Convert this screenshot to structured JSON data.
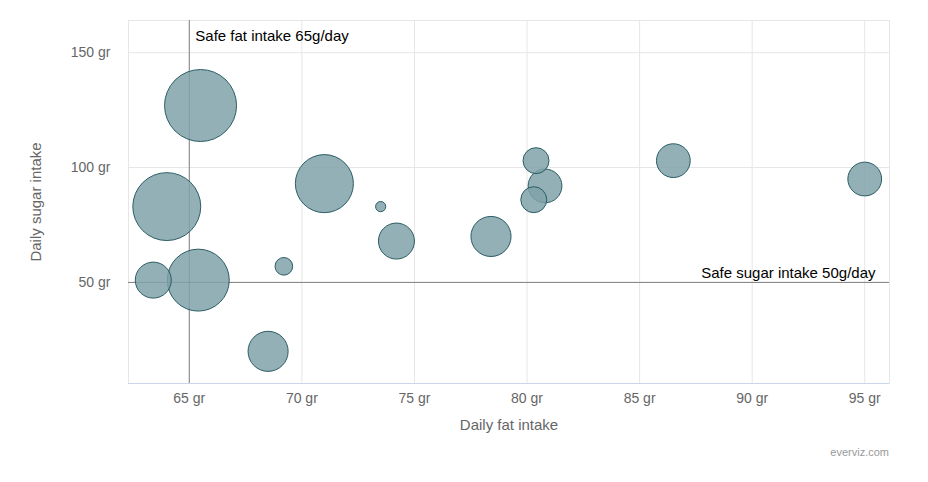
{
  "chart_data": {
    "type": "bubble",
    "x_label": "Daily fat intake",
    "y_label": "Daily sugar intake",
    "credit": "everviz.com",
    "color": "#7fa2a8",
    "grid": true,
    "x": [
      65.5,
      64,
      63.4,
      65.4,
      68.5,
      69.2,
      71,
      73.5,
      74.2,
      78.4,
      80.4,
      80.3,
      80.8,
      86.5,
      95
    ],
    "values": [
      127,
      83,
      51,
      51,
      20,
      57,
      93,
      83,
      68,
      70,
      103,
      86,
      92,
      103,
      95
    ],
    "sizes": [
      100,
      89,
      25,
      74,
      31,
      6,
      65,
      2,
      25,
      31,
      13,
      13,
      22,
      22,
      22
    ],
    "xlim": [
      62.3,
      96.1
    ],
    "ylim": [
      6,
      164
    ],
    "xticks": [
      {
        "value": 65,
        "label": "65 gr"
      },
      {
        "value": 70,
        "label": "70 gr"
      },
      {
        "value": 75,
        "label": "75 gr"
      },
      {
        "value": 80,
        "label": "80 gr"
      },
      {
        "value": 85,
        "label": "85 gr"
      },
      {
        "value": 90,
        "label": "90 gr"
      },
      {
        "value": 95,
        "label": "95 gr"
      }
    ],
    "yticks": [
      {
        "value": 50,
        "label": "50 gr"
      },
      {
        "value": 100,
        "label": "100 gr"
      },
      {
        "value": 150,
        "label": "150 gr"
      }
    ],
    "annotations": [
      {
        "axis": "x",
        "value": 65,
        "text": "Safe fat intake 65g/day"
      },
      {
        "axis": "y",
        "value": 50,
        "text": "Safe sugar intake 50g/day"
      }
    ]
  }
}
